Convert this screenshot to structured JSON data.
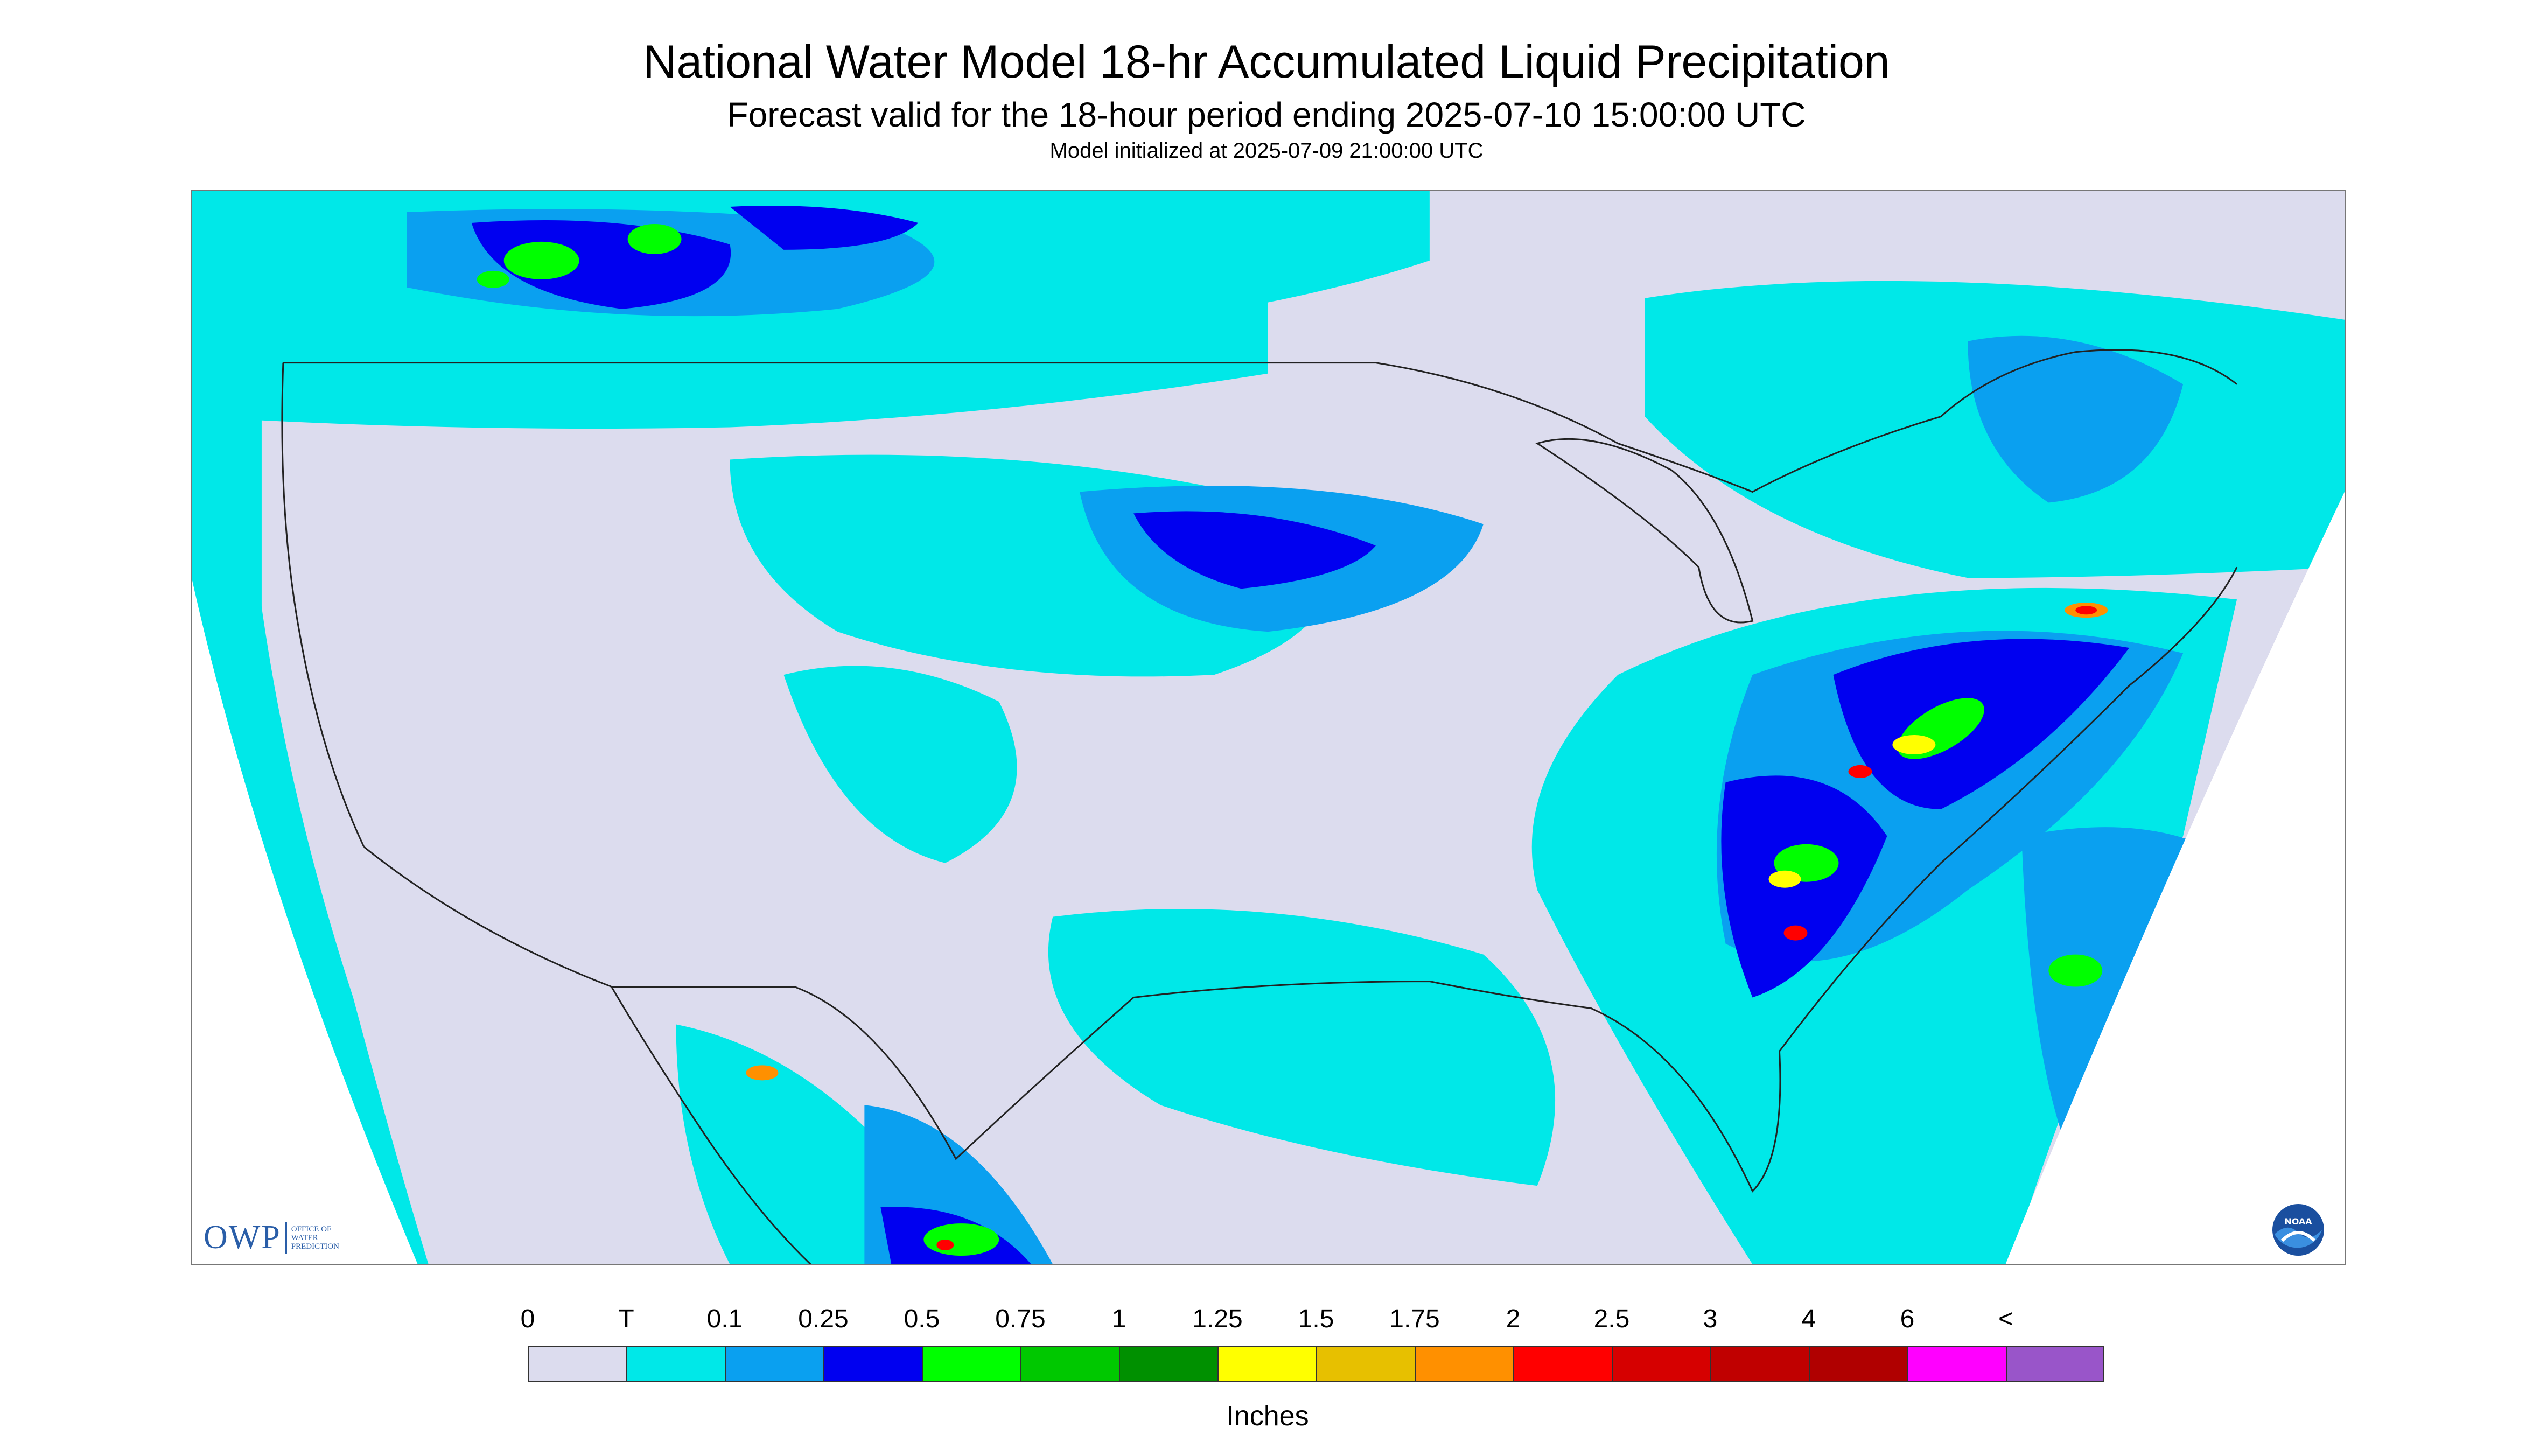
{
  "header": {
    "title": "National Water Model 18-hr Accumulated Liquid Precipitation",
    "subtitle": "Forecast valid for the 18-hour period ending 2025-07-10 15:00:00 UTC",
    "init_line": "Model initialized at 2025-07-09 21:00:00 UTC"
  },
  "logos": {
    "owp_text": "OWP",
    "owp_sub": [
      "OFFICE OF",
      "WATER",
      "PREDICTION"
    ],
    "noaa_text": "NOAA"
  },
  "legend": {
    "unit": "Inches",
    "labels": [
      "0",
      "T",
      "0.1",
      "0.25",
      "0.5",
      "0.75",
      "1",
      "1.25",
      "1.5",
      "1.75",
      "2",
      "2.5",
      "3",
      "4",
      "6",
      "<"
    ],
    "colors": [
      "#dcdcee",
      "#00e8e8",
      "#0aa0f0",
      "#0000f0",
      "#00ff00",
      "#00c800",
      "#009000",
      "#ffff00",
      "#e7c000",
      "#ff9000",
      "#ff0000",
      "#d60000",
      "#c00000",
      "#b00000",
      "#ff00ff",
      "#9955c9"
    ]
  },
  "map": {
    "colors": {
      "nodata_bg": "#ffffff",
      "dry": "#dcdcee",
      "trace": "#00e8e8",
      "light": "#0aa0f0",
      "moderate": "#0000f0",
      "heavy": "#00ff00",
      "heavier": "#00c800",
      "intense": "#ffff00",
      "very_intense": "#ff9000",
      "extreme": "#ff0000",
      "borders": "#222222"
    }
  }
}
